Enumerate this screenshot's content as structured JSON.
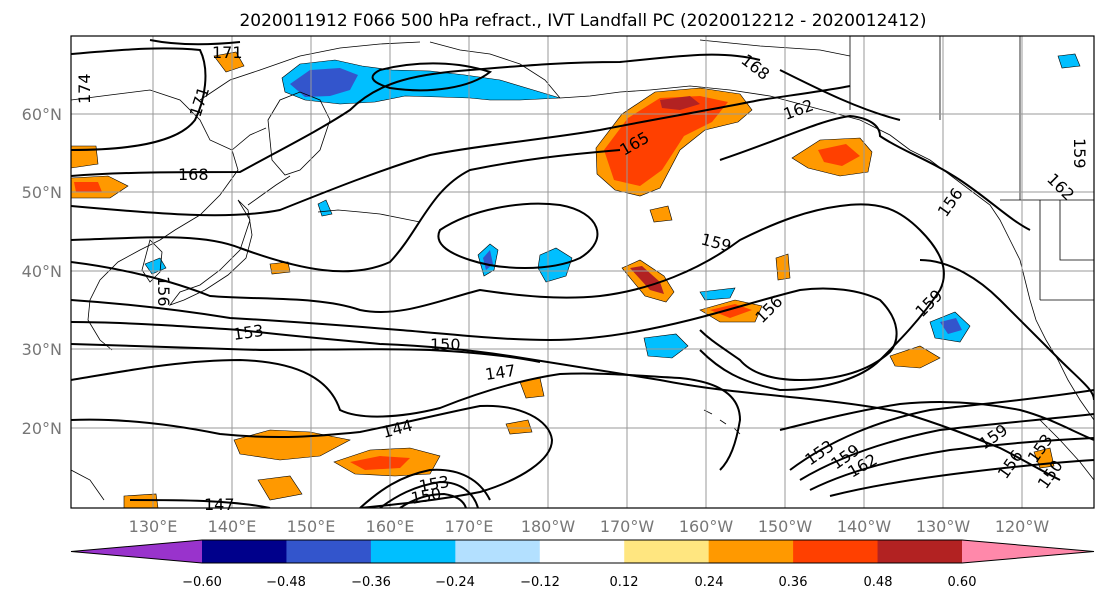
{
  "title": "2020011912 F066 500 hPa refract., IVT Landfall PC (2020012212 - 2020012412)",
  "lat_labels": [
    "60°N",
    "50°N",
    "40°N",
    "30°N",
    "20°N"
  ],
  "lon_labels": [
    "130°E",
    "140°E",
    "150°E",
    "160°E",
    "170°E",
    "180°W",
    "170°W",
    "160°W",
    "150°W",
    "140°W",
    "130°W",
    "120°W"
  ],
  "colorbar": {
    "ticks": [
      "−0.60",
      "−0.48",
      "−0.36",
      "−0.24",
      "−0.12",
      "0.12",
      "0.24",
      "0.36",
      "0.48",
      "0.60"
    ],
    "colors": [
      "#9933cc",
      "#00008b",
      "#3355cc",
      "#00bfff",
      "#b3e0ff",
      "#ffffff",
      "#ffe680",
      "#ff9900",
      "#ff4000",
      "#b22222",
      "#ff88aa"
    ]
  },
  "contour_labels": [
    "171",
    "174",
    "171",
    "168",
    "162",
    "165",
    "168",
    "159",
    "162",
    "156",
    "159",
    "153",
    "150",
    "147",
    "144",
    "156",
    "159",
    "153",
    "159",
    "162",
    "156",
    "153",
    "150",
    "147",
    "150",
    "159",
    "156",
    "153"
  ]
}
